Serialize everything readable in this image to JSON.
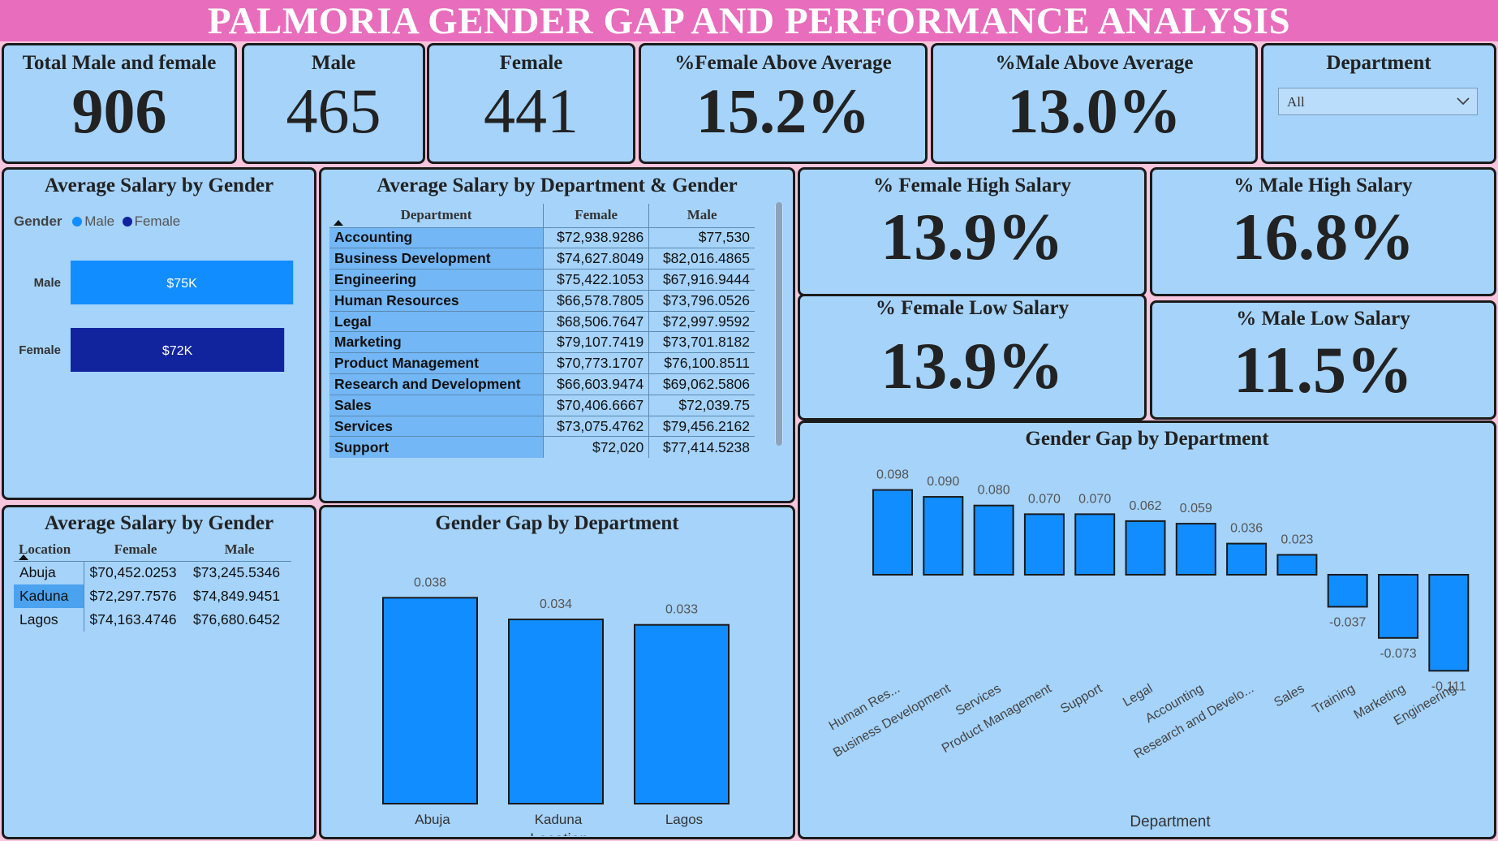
{
  "header": {
    "title": "PALMORIA GENDER GAP AND PERFORMANCE ANALYSIS"
  },
  "kpis": {
    "total": {
      "label": "Total Male and female",
      "value": "906"
    },
    "male": {
      "label": "Male",
      "value": "465"
    },
    "female": {
      "label": "Female",
      "value": "441"
    },
    "female_above_avg": {
      "label": "%Female Above Average",
      "value": "15.2%"
    },
    "male_above_avg": {
      "label": "%Male Above Average",
      "value": "13.0%"
    }
  },
  "department_filter": {
    "label": "Department",
    "selected": "All"
  },
  "salary_by_gender": {
    "title": "Average Salary by Gender",
    "legend_title": "Gender",
    "legend": [
      "Male",
      "Female"
    ]
  },
  "dept_table": {
    "title": "Average Salary by Department & Gender",
    "columns": [
      "Department",
      "Female",
      "Male"
    ],
    "rows": [
      [
        "Accounting",
        "$72,938.9286",
        "$77,530"
      ],
      [
        "Business Development",
        "$74,627.8049",
        "$82,016.4865"
      ],
      [
        "Engineering",
        "$75,422.1053",
        "$67,916.9444"
      ],
      [
        "Human Resources",
        "$66,578.7805",
        "$73,796.0526"
      ],
      [
        "Legal",
        "$68,506.7647",
        "$72,997.9592"
      ],
      [
        "Marketing",
        "$79,107.7419",
        "$73,701.8182"
      ],
      [
        "Product Management",
        "$70,773.1707",
        "$76,100.8511"
      ],
      [
        "Research and Development",
        "$66,603.9474",
        "$69,062.5806"
      ],
      [
        "Sales",
        "$70,406.6667",
        "$72,039.75"
      ],
      [
        "Services",
        "$73,075.4762",
        "$79,456.2162"
      ],
      [
        "Support",
        "$72,020",
        "$77,414.5238"
      ]
    ]
  },
  "salary_pct": {
    "female_high": {
      "label": "% Female High Salary",
      "value": "13.9%"
    },
    "male_high": {
      "label": "% Male High Salary",
      "value": "16.8%"
    },
    "female_low": {
      "label": "% Female Low Salary",
      "value": "13.9%"
    },
    "male_low": {
      "label": "% Male Low Salary",
      "value": "11.5%"
    }
  },
  "location_table": {
    "title": "Average Salary by Gender",
    "columns": [
      "Location",
      "Female",
      "Male"
    ],
    "rows": [
      [
        "Abuja",
        "$70,452.0253",
        "$73,245.5346"
      ],
      [
        "Kaduna",
        "$72,297.7576",
        "$74,849.9451"
      ],
      [
        "Lagos",
        "$74,163.4746",
        "$76,680.6452"
      ]
    ],
    "selected_row": 1
  },
  "colors": {
    "male": "#118dff",
    "female": "#12239e",
    "bar": "#118dff",
    "title_bar": "#e86dbc",
    "card": "#a5d3fa"
  },
  "chart_data": [
    {
      "type": "bar",
      "orientation": "horizontal",
      "title": "Average Salary by Gender",
      "categories": [
        "Male",
        "Female"
      ],
      "values": [
        75,
        72
      ],
      "data_labels": [
        "$75K",
        "$72K"
      ],
      "xlim": [
        0,
        93
      ]
    },
    {
      "type": "bar",
      "title": "Gender Gap by Department",
      "categories": [
        "Abuja",
        "Kaduna",
        "Lagos"
      ],
      "values": [
        0.038,
        0.034,
        0.033
      ],
      "data_labels": [
        "0.038",
        "0.034",
        "0.033"
      ],
      "xlabel": "Location",
      "ylim": [
        0,
        0.04
      ]
    },
    {
      "type": "bar",
      "title": "Gender Gap by Department",
      "categories": [
        "Human Res...",
        "Business Development",
        "Services",
        "Product Management",
        "Support",
        "Legal",
        "Accounting",
        "Research and Develo...",
        "Sales",
        "Training",
        "Marketing",
        "Engineering"
      ],
      "values": [
        0.098,
        0.09,
        0.08,
        0.07,
        0.07,
        0.062,
        0.059,
        0.036,
        0.023,
        -0.037,
        -0.073,
        -0.111
      ],
      "data_labels": [
        "0.098",
        "0.090",
        "0.080",
        "0.070",
        "0.070",
        "0.062",
        "0.059",
        "0.036",
        "0.023",
        "-0.037",
        "-0.073",
        "-0.111"
      ],
      "xlabel": "Department",
      "ylim": [
        -0.111,
        0.098
      ]
    }
  ]
}
